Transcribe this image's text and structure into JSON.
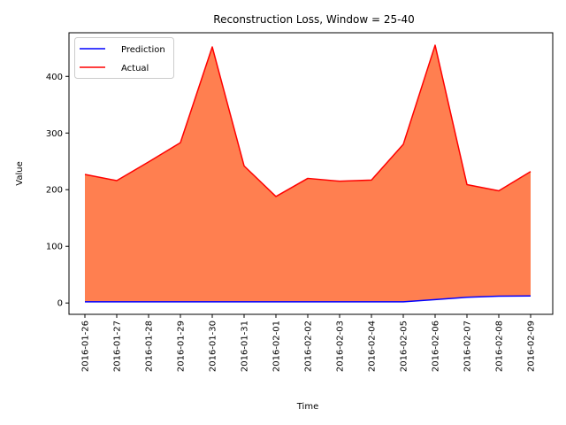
{
  "chart_data": {
    "type": "area",
    "title": "Reconstruction Loss, Window = 25-40",
    "xlabel": "Time",
    "ylabel": "Value",
    "categories": [
      "2016-01-26",
      "2016-01-27",
      "2016-01-28",
      "2016-01-29",
      "2016-01-30",
      "2016-01-31",
      "2016-02-01",
      "2016-02-02",
      "2016-02-03",
      "2016-02-04",
      "2016-02-05",
      "2016-02-06",
      "2016-02-07",
      "2016-02-08",
      "2016-02-09"
    ],
    "series": [
      {
        "name": "Prediction",
        "color": "#0000ff",
        "values": [
          2,
          2,
          2,
          2,
          2,
          2,
          2,
          2,
          2,
          2,
          2,
          6,
          10,
          12,
          12.5
        ]
      },
      {
        "name": "Actual",
        "color": "#ff0000",
        "values": [
          227,
          216,
          249,
          283,
          452,
          242,
          188,
          220,
          215,
          217,
          280,
          455,
          209,
          198,
          232
        ]
      }
    ],
    "fill": {
      "between": [
        "Prediction",
        "Actual"
      ],
      "color": "#ff7f50"
    },
    "yticks": [
      0,
      100,
      200,
      300,
      400
    ],
    "ylim": [
      -20,
      477
    ],
    "grid": false,
    "legend_position": "upper-left"
  }
}
